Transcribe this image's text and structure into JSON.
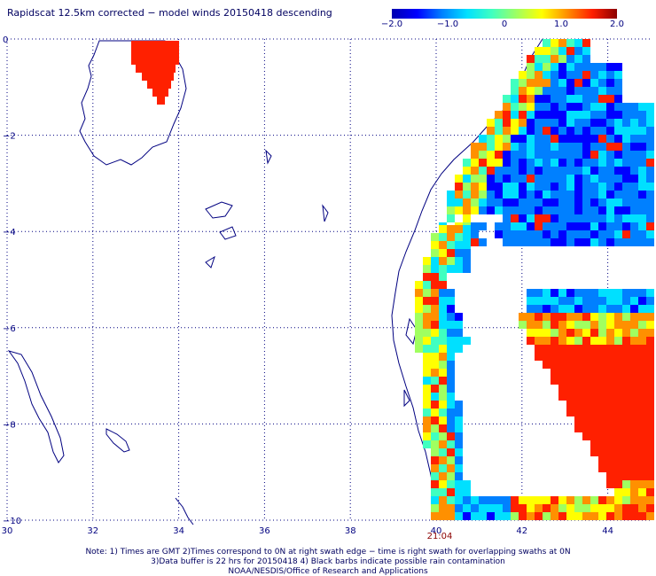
{
  "title": "Rapidscat 12.5km corrected − model winds 20150418 descending",
  "colorbar": {
    "ticks": [
      "−2.0",
      "−1.0",
      "0",
      "1.0",
      "2.0"
    ],
    "range": [
      -2.0,
      2.0
    ]
  },
  "axes": {
    "lon_ticks": [
      "30",
      "32",
      "34",
      "36",
      "38",
      "40",
      "42",
      "44"
    ],
    "lat_ticks": [
      "0",
      "−2",
      "−4",
      "−6",
      "−8",
      "−10"
    ],
    "lon_range": [
      30,
      45
    ],
    "lat_range": [
      -10,
      0
    ]
  },
  "swath_time": "21:04",
  "notes": [
    "Note: 1) Times are GMT 2)Times correspond to 0N at right swath edge − time is right swath for overlapping swaths at 0N",
    "3)Data buffer is 22 hrs for 20150418 4) Black barbs indicate possible rain contamination",
    "NOAA/NESDIS/Office of Research and Applications"
  ]
}
